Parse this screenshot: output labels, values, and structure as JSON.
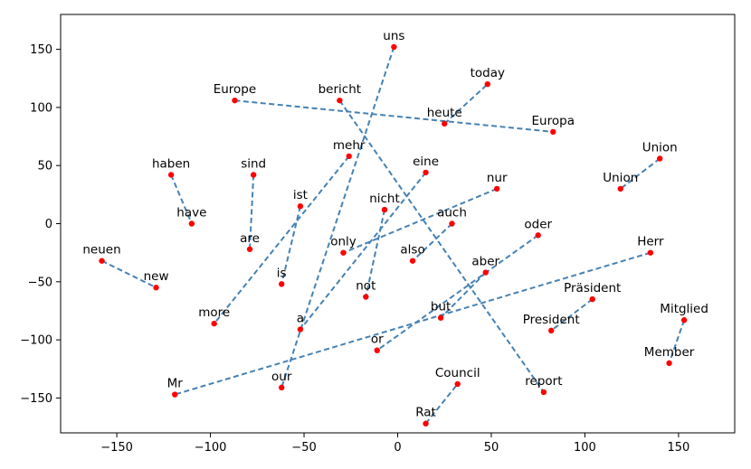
{
  "chart_data": {
    "type": "scatter",
    "title": "",
    "xlabel": "",
    "ylabel": "",
    "xlim": [
      -180,
      180
    ],
    "ylim": [
      -180,
      180
    ],
    "xticks": [
      -150,
      -100,
      -50,
      0,
      50,
      100,
      150
    ],
    "yticks": [
      150,
      100,
      50,
      0,
      -50,
      -100,
      -150
    ],
    "grid": false,
    "point_color": "#ff0000",
    "line_color": "#4682b4",
    "points": [
      {
        "label": "uns",
        "x": -2,
        "y": 152
      },
      {
        "label": "today",
        "x": 48,
        "y": 120
      },
      {
        "label": "Europe",
        "x": -87,
        "y": 106
      },
      {
        "label": "bericht",
        "x": -31,
        "y": 106
      },
      {
        "label": "heute",
        "x": 25,
        "y": 86
      },
      {
        "label": "Europa",
        "x": 83,
        "y": 79
      },
      {
        "label": "mehr",
        "x": -26,
        "y": 58
      },
      {
        "label": "Union",
        "x": 140,
        "y": 56
      },
      {
        "label": "eine",
        "x": 15,
        "y": 44
      },
      {
        "label": "haben",
        "x": -121,
        "y": 42
      },
      {
        "label": "sind",
        "x": -77,
        "y": 42
      },
      {
        "label": "nur",
        "x": 53,
        "y": 30
      },
      {
        "label": "Union",
        "x": 119,
        "y": 30
      },
      {
        "label": "ist",
        "x": -52,
        "y": 15
      },
      {
        "label": "nicht",
        "x": -7,
        "y": 12
      },
      {
        "label": "have",
        "x": -110,
        "y": 0
      },
      {
        "label": "auch",
        "x": 29,
        "y": 0
      },
      {
        "label": "oder",
        "x": 75,
        "y": -10
      },
      {
        "label": "are",
        "x": -79,
        "y": -22
      },
      {
        "label": "only",
        "x": -29,
        "y": -25
      },
      {
        "label": "Herr",
        "x": 135,
        "y": -25
      },
      {
        "label": "also",
        "x": 8,
        "y": -32
      },
      {
        "label": "neuen",
        "x": -158,
        "y": -32
      },
      {
        "label": "aber",
        "x": 47,
        "y": -42
      },
      {
        "label": "is",
        "x": -62,
        "y": -52
      },
      {
        "label": "new",
        "x": -129,
        "y": -55
      },
      {
        "label": "not",
        "x": -17,
        "y": -63
      },
      {
        "label": "Präsident",
        "x": 104,
        "y": -65
      },
      {
        "label": "but",
        "x": 23,
        "y": -81
      },
      {
        "label": "Mitglied",
        "x": 153,
        "y": -83
      },
      {
        "label": "more",
        "x": -98,
        "y": -86
      },
      {
        "label": "a",
        "x": -52,
        "y": -91
      },
      {
        "label": "President",
        "x": 82,
        "y": -92
      },
      {
        "label": "or",
        "x": -11,
        "y": -109
      },
      {
        "label": "Member",
        "x": 145,
        "y": -120
      },
      {
        "label": "Council",
        "x": 32,
        "y": -138
      },
      {
        "label": "our",
        "x": -62,
        "y": -141
      },
      {
        "label": "report",
        "x": 78,
        "y": -145
      },
      {
        "label": "Mr",
        "x": -119,
        "y": -147
      },
      {
        "label": "Rat",
        "x": 15,
        "y": -172
      }
    ],
    "pairs": [
      [
        "uns",
        "our"
      ],
      [
        "heute",
        "today"
      ],
      [
        "Europe",
        "Europa"
      ],
      [
        "bericht",
        "report"
      ],
      [
        "mehr",
        "more"
      ],
      [
        "Union",
        "Union"
      ],
      [
        "eine",
        "a"
      ],
      [
        "haben",
        "have"
      ],
      [
        "sind",
        "are"
      ],
      [
        "nur",
        "only"
      ],
      [
        "ist",
        "is"
      ],
      [
        "nicht",
        "not"
      ],
      [
        "auch",
        "also"
      ],
      [
        "oder",
        "or"
      ],
      [
        "Herr",
        "Mr"
      ],
      [
        "neuen",
        "new"
      ],
      [
        "aber",
        "but"
      ],
      [
        "Präsident",
        "President"
      ],
      [
        "Mitglied",
        "Member"
      ],
      [
        "Rat",
        "Council"
      ]
    ]
  }
}
